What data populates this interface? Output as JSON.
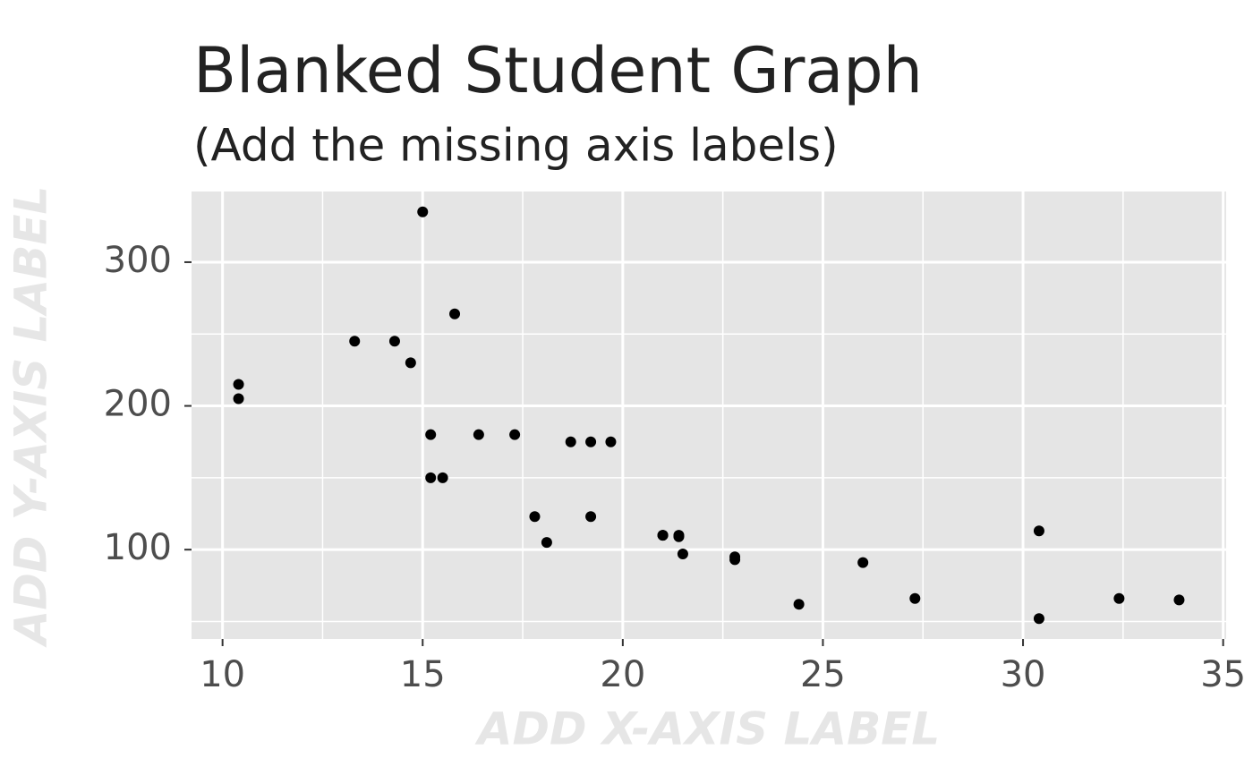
{
  "chart_data": {
    "type": "scatter",
    "title": "Blanked Student Graph",
    "subtitle": "(Add the missing axis labels)",
    "x_label": "ADD X-AXIS LABEL",
    "y_label": "ADD Y-AXIS LABEL",
    "x": [
      21,
      21,
      22.8,
      21.4,
      18.7,
      18.1,
      14.3,
      24.4,
      22.8,
      19.2,
      17.8,
      16.4,
      17.3,
      15.2,
      10.4,
      10.4,
      14.7,
      32.4,
      30.4,
      33.9,
      21.5,
      15.5,
      15.2,
      13.3,
      19.2,
      27.3,
      26,
      30.4,
      15.8,
      19.7,
      15,
      21.4
    ],
    "values": [
      110,
      110,
      93,
      110,
      175,
      105,
      245,
      62,
      95,
      123,
      123,
      180,
      180,
      180,
      205,
      215,
      230,
      66,
      52,
      65,
      97,
      150,
      150,
      245,
      175,
      66,
      91,
      113,
      264,
      175,
      335,
      109
    ],
    "color": "#000000",
    "xlim": [
      9.225,
      35.075
    ],
    "ylim": [
      37.85,
      349.15
    ],
    "xticks": [
      10,
      15,
      20,
      25,
      30,
      35
    ],
    "yticks": [
      100,
      200,
      300
    ],
    "grid": true
  }
}
